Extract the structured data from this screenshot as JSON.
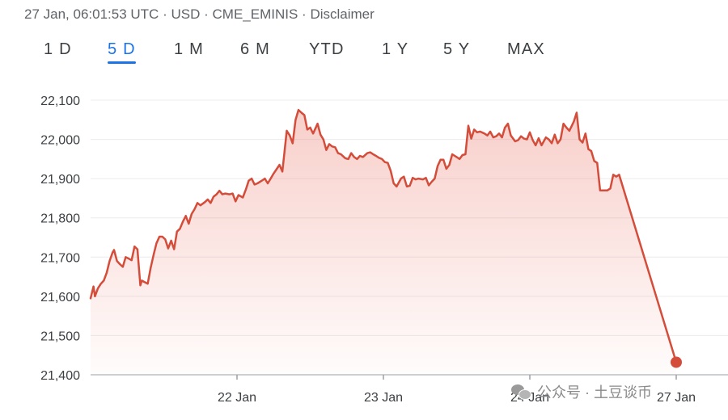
{
  "header": {
    "date": "27 Jan, 06:01:53 UTC",
    "currency": "USD",
    "source": "CME_EMINIS",
    "disclaimer": "Disclaimer",
    "separator": "·"
  },
  "tabs": [
    {
      "label": "1 D",
      "active": false
    },
    {
      "label": "5 D",
      "active": true
    },
    {
      "label": "1 M",
      "active": false
    },
    {
      "label": "6 M",
      "active": false
    },
    {
      "label": "YTD",
      "active": false
    },
    {
      "label": "1 Y",
      "active": false
    },
    {
      "label": "5 Y",
      "active": false
    },
    {
      "label": "MAX",
      "active": false
    }
  ],
  "watermark": "公众号 · 土豆谈币",
  "colors": {
    "line": "#d44c3a",
    "fill": "#e8695a",
    "accent": "#1a73e8"
  },
  "chart_data": {
    "type": "area",
    "title": "",
    "xlabel": "",
    "ylabel": "",
    "ylim": [
      21400,
      22100
    ],
    "yticks": [
      21400,
      21500,
      21600,
      21700,
      21800,
      21900,
      22000,
      22100
    ],
    "ytick_labels": [
      "21,400",
      "21,500",
      "21,600",
      "21,700",
      "21,800",
      "21,900",
      "22,000",
      "22,100"
    ],
    "xlim": [
      0,
      4
    ],
    "xticks": [
      1,
      2,
      3,
      4
    ],
    "xtick_labels": [
      "22 Jan",
      "23 Jan",
      "24 Jan",
      "27 Jan"
    ],
    "grid": true,
    "series": [
      {
        "values": [
          [
            0.0,
            21595
          ],
          [
            0.02,
            21625
          ],
          [
            0.03,
            21600
          ],
          [
            0.05,
            21620
          ],
          [
            0.07,
            21632
          ],
          [
            0.09,
            21640
          ],
          [
            0.11,
            21660
          ],
          [
            0.13,
            21690
          ],
          [
            0.15,
            21712
          ],
          [
            0.16,
            21718
          ],
          [
            0.18,
            21690
          ],
          [
            0.2,
            21682
          ],
          [
            0.22,
            21675
          ],
          [
            0.24,
            21700
          ],
          [
            0.26,
            21696
          ],
          [
            0.28,
            21692
          ],
          [
            0.3,
            21727
          ],
          [
            0.32,
            21720
          ],
          [
            0.34,
            21628
          ],
          [
            0.35,
            21640
          ],
          [
            0.37,
            21636
          ],
          [
            0.39,
            21632
          ],
          [
            0.41,
            21672
          ],
          [
            0.43,
            21705
          ],
          [
            0.45,
            21735
          ],
          [
            0.47,
            21752
          ],
          [
            0.49,
            21752
          ],
          [
            0.51,
            21745
          ],
          [
            0.53,
            21722
          ],
          [
            0.55,
            21742
          ],
          [
            0.57,
            21720
          ],
          [
            0.59,
            21765
          ],
          [
            0.61,
            21772
          ],
          [
            0.63,
            21790
          ],
          [
            0.65,
            21805
          ],
          [
            0.67,
            21785
          ],
          [
            0.69,
            21810
          ],
          [
            0.71,
            21822
          ],
          [
            0.73,
            21838
          ],
          [
            0.75,
            21832
          ],
          [
            0.78,
            21840
          ],
          [
            0.8,
            21847
          ],
          [
            0.82,
            21838
          ],
          [
            0.84,
            21854
          ],
          [
            0.86,
            21860
          ],
          [
            0.88,
            21869
          ],
          [
            0.9,
            21860
          ],
          [
            0.92,
            21862
          ],
          [
            0.95,
            21860
          ],
          [
            0.97,
            21862
          ],
          [
            0.99,
            21842
          ],
          [
            1.01,
            21858
          ],
          [
            1.04,
            21852
          ],
          [
            1.06,
            21872
          ],
          [
            1.08,
            21895
          ],
          [
            1.1,
            21900
          ],
          [
            1.12,
            21885
          ],
          [
            1.14,
            21888
          ],
          [
            1.17,
            21895
          ],
          [
            1.19,
            21900
          ],
          [
            1.21,
            21888
          ],
          [
            1.23,
            21900
          ],
          [
            1.25,
            21913
          ],
          [
            1.27,
            21924
          ],
          [
            1.29,
            21935
          ],
          [
            1.31,
            21918
          ],
          [
            1.34,
            22022
          ],
          [
            1.36,
            22010
          ],
          [
            1.38,
            21990
          ],
          [
            1.4,
            22050
          ],
          [
            1.42,
            22075
          ],
          [
            1.44,
            22068
          ],
          [
            1.46,
            22062
          ],
          [
            1.48,
            22025
          ],
          [
            1.5,
            22030
          ],
          [
            1.52,
            22015
          ],
          [
            1.55,
            22040
          ],
          [
            1.57,
            22012
          ],
          [
            1.59,
            22000
          ],
          [
            1.61,
            21973
          ],
          [
            1.63,
            21988
          ],
          [
            1.65,
            21982
          ],
          [
            1.67,
            21980
          ],
          [
            1.69,
            21965
          ],
          [
            1.71,
            21962
          ],
          [
            1.74,
            21952
          ],
          [
            1.76,
            21950
          ],
          [
            1.78,
            21965
          ],
          [
            1.8,
            21955
          ],
          [
            1.82,
            21950
          ],
          [
            1.84,
            21958
          ],
          [
            1.86,
            21955
          ],
          [
            1.89,
            21965
          ],
          [
            1.91,
            21967
          ],
          [
            1.93,
            21962
          ],
          [
            1.95,
            21958
          ],
          [
            1.97,
            21953
          ],
          [
            1.99,
            21950
          ],
          [
            2.01,
            21942
          ],
          [
            2.03,
            21940
          ],
          [
            2.05,
            21920
          ],
          [
            2.07,
            21888
          ],
          [
            2.09,
            21880
          ],
          [
            2.12,
            21900
          ],
          [
            2.14,
            21905
          ],
          [
            2.16,
            21880
          ],
          [
            2.18,
            21882
          ],
          [
            2.2,
            21902
          ],
          [
            2.22,
            21898
          ],
          [
            2.24,
            21900
          ],
          [
            2.27,
            21898
          ],
          [
            2.29,
            21902
          ],
          [
            2.31,
            21883
          ],
          [
            2.33,
            21892
          ],
          [
            2.35,
            21900
          ],
          [
            2.37,
            21932
          ],
          [
            2.39,
            21948
          ],
          [
            2.41,
            21948
          ],
          [
            2.43,
            21925
          ],
          [
            2.45,
            21935
          ],
          [
            2.47,
            21962
          ],
          [
            2.5,
            21955
          ],
          [
            2.52,
            21950
          ],
          [
            2.54,
            21960
          ],
          [
            2.56,
            21962
          ],
          [
            2.58,
            22035
          ],
          [
            2.6,
            22002
          ],
          [
            2.62,
            22025
          ],
          [
            2.64,
            22018
          ],
          [
            2.66,
            22020
          ],
          [
            2.69,
            22015
          ],
          [
            2.71,
            22010
          ],
          [
            2.73,
            22020
          ],
          [
            2.75,
            22005
          ],
          [
            2.77,
            22008
          ],
          [
            2.79,
            22015
          ],
          [
            2.81,
            22005
          ],
          [
            2.83,
            22030
          ],
          [
            2.85,
            22040
          ],
          [
            2.87,
            22010
          ],
          [
            2.9,
            21995
          ],
          [
            2.92,
            21998
          ],
          [
            2.94,
            22008
          ],
          [
            2.96,
            22002
          ],
          [
            2.98,
            22000
          ],
          [
            3.0,
            22018
          ],
          [
            3.02,
            21998
          ],
          [
            3.04,
            21985
          ],
          [
            3.06,
            22003
          ],
          [
            3.08,
            21985
          ],
          [
            3.11,
            22005
          ],
          [
            3.13,
            22000
          ],
          [
            3.15,
            21990
          ],
          [
            3.17,
            22012
          ],
          [
            3.19,
            21990
          ],
          [
            3.21,
            22000
          ],
          [
            3.23,
            22040
          ],
          [
            3.25,
            22030
          ],
          [
            3.27,
            22022
          ],
          [
            3.3,
            22045
          ],
          [
            3.32,
            22068
          ],
          [
            3.34,
            22000
          ],
          [
            3.36,
            21992
          ],
          [
            3.38,
            22015
          ],
          [
            3.4,
            21975
          ],
          [
            3.42,
            21970
          ],
          [
            3.44,
            21945
          ],
          [
            3.46,
            21940
          ],
          [
            3.48,
            21870
          ],
          [
            3.5,
            21870
          ],
          [
            3.53,
            21870
          ],
          [
            3.55,
            21875
          ],
          [
            3.57,
            21910
          ],
          [
            3.59,
            21905
          ],
          [
            3.61,
            21910
          ],
          [
            4.0,
            21432
          ]
        ]
      }
    ],
    "last_point": [
      4.0,
      21432
    ]
  }
}
